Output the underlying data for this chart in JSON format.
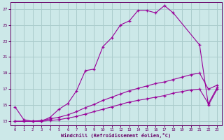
{
  "bg_color": "#cce8e8",
  "grid_color": "#aacccc",
  "line_color": "#990099",
  "xlabel": "Windchill (Refroidissement éolien,°C)",
  "xlim_min": -0.5,
  "xlim_max": 23.5,
  "ylim_min": 12.5,
  "ylim_max": 27.8,
  "yticks": [
    13,
    15,
    17,
    19,
    21,
    23,
    25,
    27
  ],
  "xticks": [
    0,
    1,
    2,
    3,
    4,
    5,
    6,
    7,
    8,
    9,
    10,
    11,
    12,
    13,
    14,
    15,
    16,
    17,
    18,
    19,
    20,
    21,
    22,
    23
  ],
  "curve1_x": [
    0,
    1,
    2,
    3,
    4,
    5,
    6,
    7,
    8,
    9,
    10,
    11,
    12,
    13,
    14,
    15,
    16,
    17,
    18,
    21,
    22,
    23
  ],
  "curve1_y": [
    14.8,
    13.2,
    13.0,
    13.0,
    13.5,
    14.5,
    15.2,
    16.8,
    19.3,
    19.5,
    22.3,
    23.4,
    25.0,
    25.5,
    26.8,
    26.8,
    26.5,
    27.4,
    26.5,
    22.5,
    15.0,
    17.0
  ],
  "curve2_x": [
    0,
    1,
    2,
    3,
    4,
    5,
    6,
    7,
    8,
    9,
    10,
    11,
    12,
    13,
    14,
    15,
    16,
    17,
    18,
    19,
    20,
    21,
    22,
    23
  ],
  "curve2_y": [
    13.0,
    13.0,
    13.0,
    13.1,
    13.3,
    13.5,
    13.8,
    14.2,
    14.7,
    15.1,
    15.6,
    16.0,
    16.4,
    16.8,
    17.1,
    17.4,
    17.7,
    17.9,
    18.2,
    18.5,
    18.8,
    19.0,
    17.0,
    17.5
  ],
  "curve3_x": [
    0,
    1,
    2,
    3,
    4,
    5,
    6,
    7,
    8,
    9,
    10,
    11,
    12,
    13,
    14,
    15,
    16,
    17,
    18,
    19,
    20,
    21,
    22,
    23
  ],
  "curve3_y": [
    13.0,
    13.0,
    13.0,
    13.0,
    13.1,
    13.2,
    13.4,
    13.6,
    13.9,
    14.2,
    14.5,
    14.8,
    15.1,
    15.4,
    15.6,
    15.8,
    16.0,
    16.2,
    16.5,
    16.7,
    16.9,
    17.0,
    15.2,
    17.2
  ]
}
